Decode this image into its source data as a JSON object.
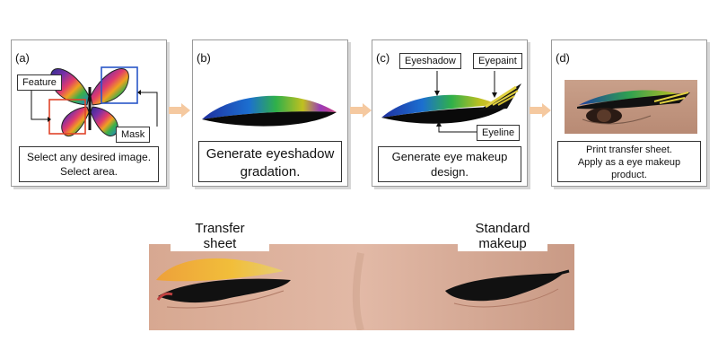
{
  "panels": [
    {
      "label": "(a)",
      "callouts": {
        "feature": "Feature",
        "mask": "Mask"
      },
      "caption": [
        "Select any desired image.",
        "Select area."
      ]
    },
    {
      "label": "(b)",
      "caption": [
        "Generate eyeshadow",
        "gradation."
      ]
    },
    {
      "label": "(c)",
      "callouts": {
        "eyeshadow": "Eyeshadow",
        "eyepaint": "Eyepaint",
        "eyeline": "Eyeline"
      },
      "caption": [
        "Generate eye makeup",
        "design."
      ]
    },
    {
      "label": "(d)",
      "caption": [
        "Print transfer sheet.",
        "Apply as a eye makeup",
        "product."
      ]
    }
  ],
  "photo": {
    "left_label": [
      "Transfer",
      "sheet"
    ],
    "right_label": [
      "Standard",
      "makeup"
    ]
  },
  "colors": {
    "arrow": "#f5c9a0",
    "feature_box": "#e0442a",
    "mask_box": "#2a56c8"
  }
}
